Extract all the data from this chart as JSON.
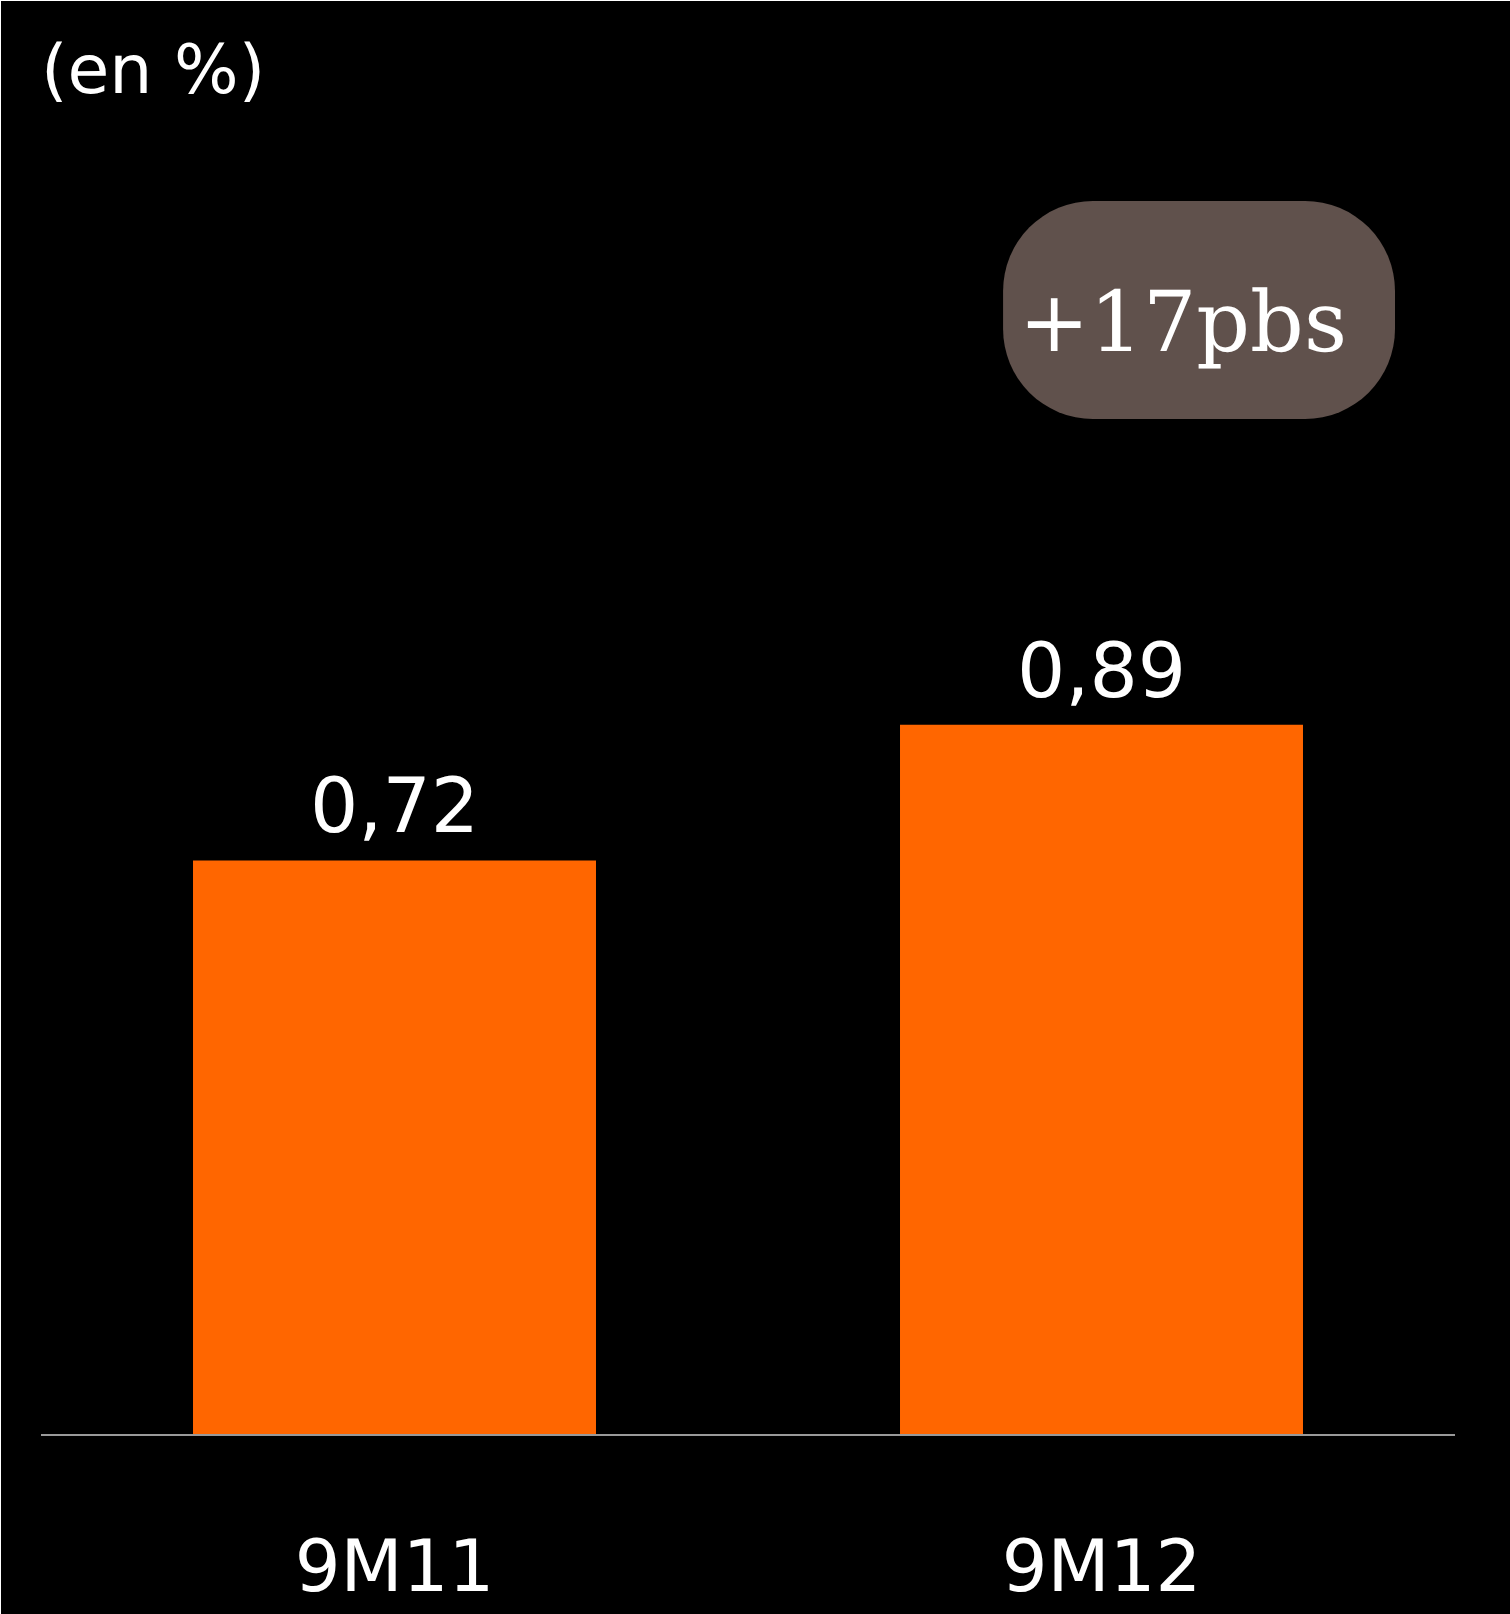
{
  "chart_data": {
    "type": "bar",
    "title": "(en %)",
    "categories": [
      "9M11",
      "9M12"
    ],
    "values": [
      0.72,
      0.89
    ],
    "color": "#ff6600",
    "data_labels": true,
    "value_labels": [
      "0,72",
      "0,89"
    ],
    "annotations": [
      "+17pbs"
    ],
    "grid": false
  }
}
